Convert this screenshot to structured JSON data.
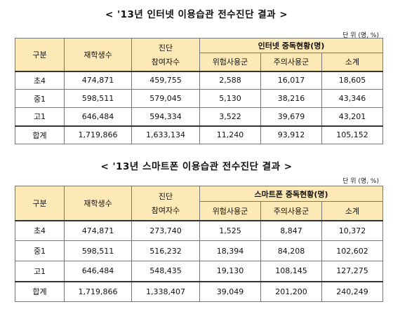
{
  "internet": {
    "title": "< '13년 인터넷 이용습관 전수진단 결과 >",
    "unit": "단 위 (명, %)",
    "headers": {
      "col1": "구분",
      "col2": "재학생수",
      "col3_top": "진단",
      "col3_bottom": "참여자수",
      "group": "인터넷 중독현황(명)",
      "sub1": "위험사용군",
      "sub2": "주의사용군",
      "sub3": "소계"
    },
    "rows": [
      {
        "label": "초4",
        "enrolled": "474,871",
        "participants": "459,755",
        "risk": "2,588",
        "caution": "16,017",
        "subtotal": "18,605"
      },
      {
        "label": "중1",
        "enrolled": "598,511",
        "participants": "579,045",
        "risk": "5,130",
        "caution": "38,216",
        "subtotal": "43,346"
      },
      {
        "label": "고1",
        "enrolled": "646,484",
        "participants": "594,334",
        "risk": "3,522",
        "caution": "39,679",
        "subtotal": "43,201"
      }
    ],
    "total": {
      "label": "합계",
      "enrolled": "1,719,866",
      "participants": "1,633,134",
      "risk": "11,240",
      "caution": "93,912",
      "subtotal": "105,152"
    }
  },
  "smartphone": {
    "title": "< '13년 스마트폰 이용습관 전수진단 결과 >",
    "unit": "단 위 (명, %)",
    "headers": {
      "col1": "구분",
      "col2": "재학생수",
      "col3_top": "진단",
      "col3_bottom": "참여자수",
      "group": "스마트폰 중독현황(명)",
      "sub1": "위험사용군",
      "sub2": "주의사용군",
      "sub3": "소계"
    },
    "rows": [
      {
        "label": "초4",
        "enrolled": "474,871",
        "participants": "273,740",
        "risk": "1,525",
        "caution": "8,847",
        "subtotal": "10,372"
      },
      {
        "label": "중1",
        "enrolled": "598,511",
        "participants": "516,232",
        "risk": "18,394",
        "caution": "84,208",
        "subtotal": "102,602"
      },
      {
        "label": "고1",
        "enrolled": "646,484",
        "participants": "548,435",
        "risk": "19,130",
        "caution": "108,145",
        "subtotal": "127,275"
      }
    ],
    "total": {
      "label": "합계",
      "enrolled": "1,719,866",
      "participants": "1,338,407",
      "risk": "39,049",
      "caution": "201,200",
      "subtotal": "240,249"
    }
  },
  "colors": {
    "header_bg": "#fde9b6",
    "border": "#777777"
  }
}
